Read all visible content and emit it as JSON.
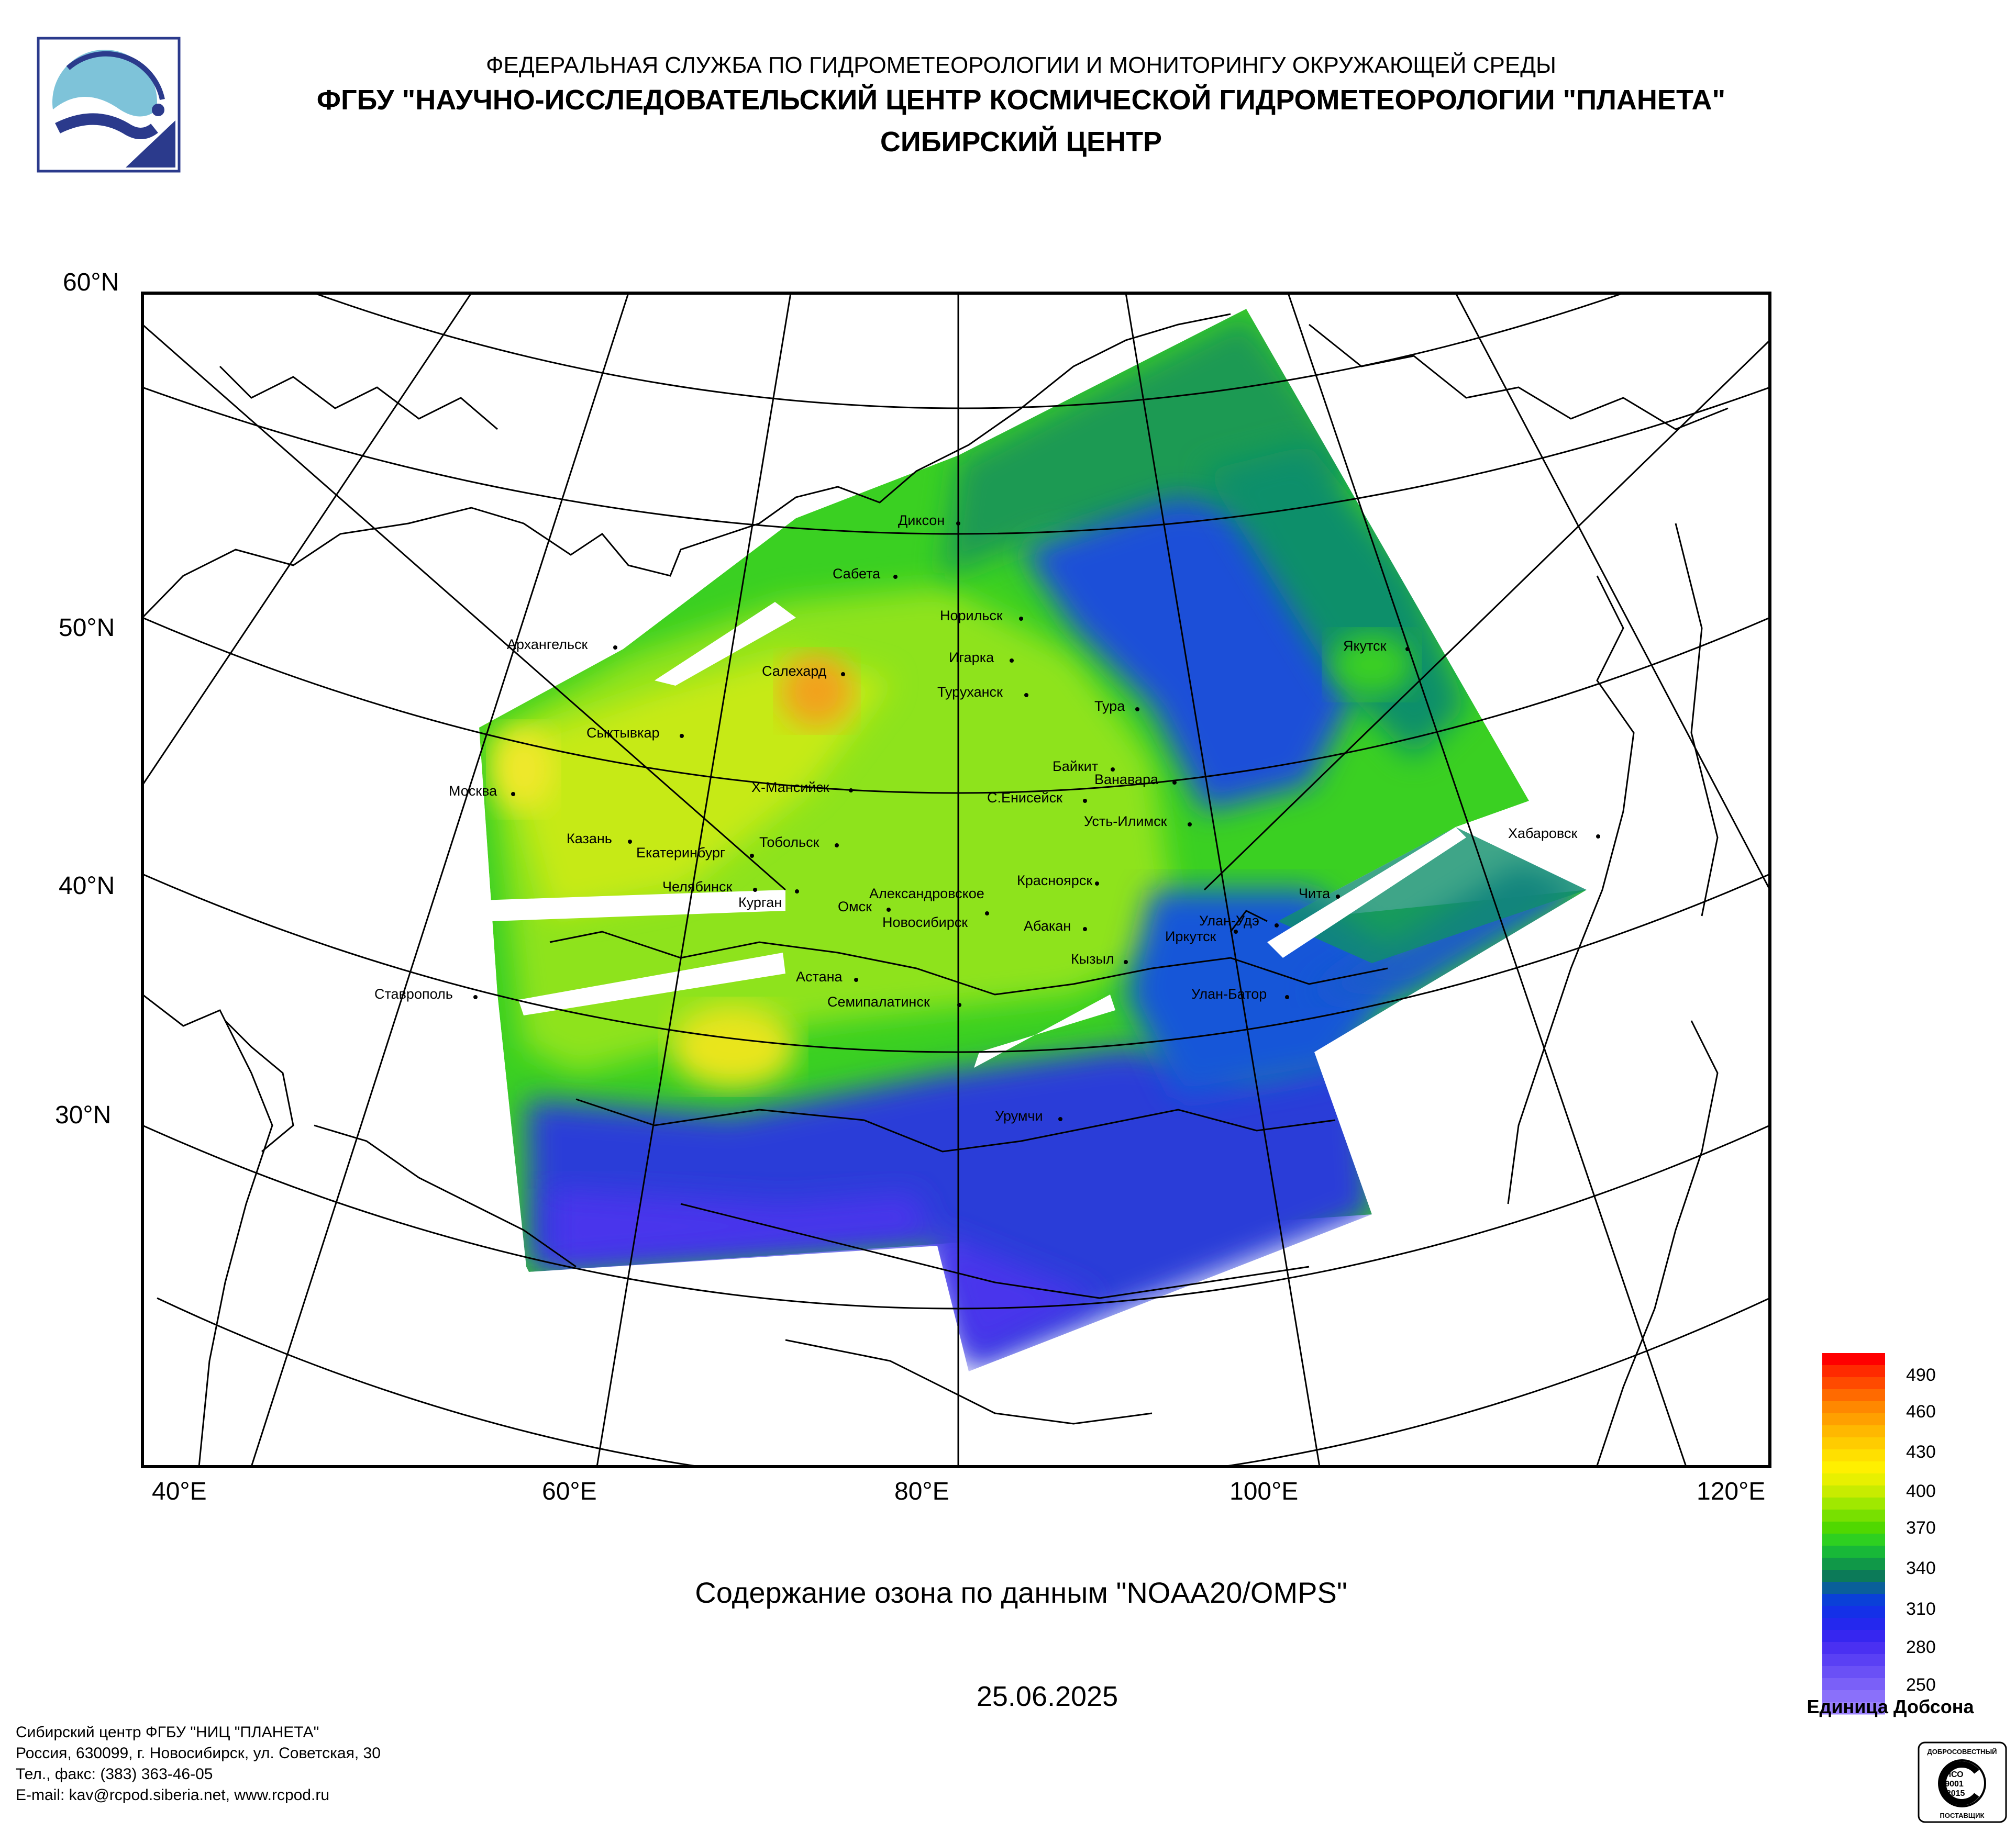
{
  "header": {
    "line1": "ФЕДЕРАЛЬНАЯ СЛУЖБА ПО ГИДРОМЕТЕОРОЛОГИИ И МОНИТОРИНГУ ОКРУЖАЮЩЕЙ СРЕДЫ",
    "line2": "ФГБУ \"НАУЧНО-ИССЛЕДОВАТЕЛЬСКИЙ ЦЕНТР КОСМИЧЕСКОЙ ГИДРОМЕТЕОРОЛОГИИ \"ПЛАНЕТА\"",
    "line3": "СИБИРСКИЙ ЦЕНТР"
  },
  "map": {
    "lat_labels": [
      "60°N",
      "50°N",
      "40°N",
      "30°N"
    ],
    "lon_labels": [
      "40°E",
      "60°E",
      "80°E",
      "100°E",
      "120°E"
    ],
    "cities": [
      "Диксон",
      "Сабета",
      "Норильск",
      "Игарка",
      "Салехард",
      "Туруханск",
      "Тура",
      "Якутск",
      "Архангельск",
      "Сыктывкар",
      "Москва",
      "Х-Мансийск",
      "Байкит",
      "Ванавара",
      "С.Енисейск",
      "Усть-Илимск",
      "Хабаровск",
      "Казань",
      "Тобольск",
      "Екатеринбург",
      "Челябинск",
      "Курган",
      "Красноярск",
      "Александровское",
      "Омск",
      "Новосибирск",
      "Абакан",
      "Улан-Удэ",
      "Чита",
      "Иркутск",
      "Кызыл",
      "Астана",
      "Ставрополь",
      "Семипалатинск",
      "Улан-Батор",
      "Урумчи"
    ],
    "title": "Содержание озона по данным \"NOAA20/OMPS\"",
    "date": "25.06.2025"
  },
  "legend": {
    "labels": [
      "490",
      "460",
      "430",
      "400",
      "370",
      "340",
      "310",
      "280",
      "250"
    ],
    "unit": "Единица Добсона",
    "range": [
      250,
      500
    ]
  },
  "contact": {
    "line1": "Сибирский центр ФГБУ \"НИЦ \"ПЛАНЕТА\"",
    "line2": "Россия, 630099, г. Новосибирск, ул. Советская, 30",
    "line3": "Тел., факс: (383) 363-46-05",
    "line4": "E-mail: kav@rcpod.siberia.net, www.rcpod.ru"
  },
  "iso_badge": {
    "top": "ДОБРОСОВЕСТНЫЙ",
    "l1": "ИСО",
    "l2": "9001",
    "l3": "-2015",
    "bottom": "ПОСТАВЩИК"
  }
}
